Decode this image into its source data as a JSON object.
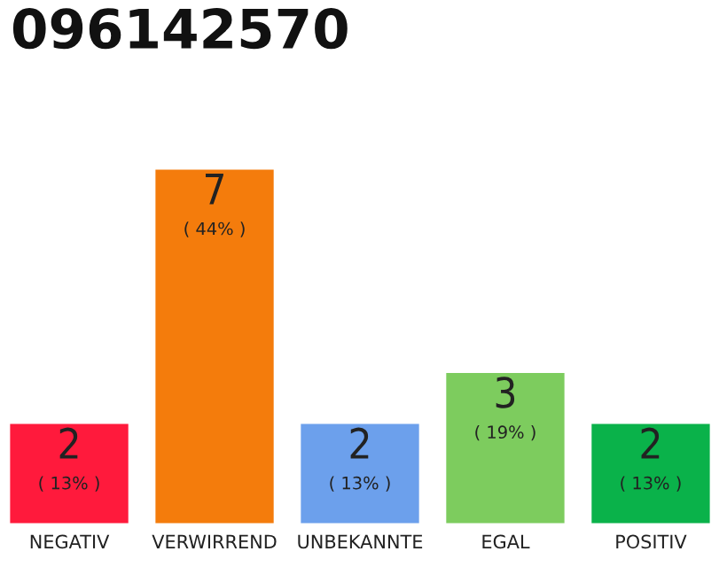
{
  "chart_data": {
    "type": "bar",
    "title": "096142570",
    "categories": [
      "NEGATIV",
      "VERWIRREND",
      "UNBEKANNTE",
      "EGAL",
      "POSITIV"
    ],
    "values": [
      2,
      7,
      2,
      3,
      2
    ],
    "colors": [
      "#ff1a3c",
      "#f47c0c",
      "#6ca0ec",
      "#7dcc5e",
      "#0ab24a"
    ],
    "value_labels": [
      "2\n( 13% )",
      "7\n( 44% )",
      "2\n( 13% )",
      "3\n( 19% )",
      "2\n( 13% )"
    ],
    "ylim": [
      0,
      7
    ],
    "tick_labels": "x",
    "grid": false,
    "legend": false
  }
}
